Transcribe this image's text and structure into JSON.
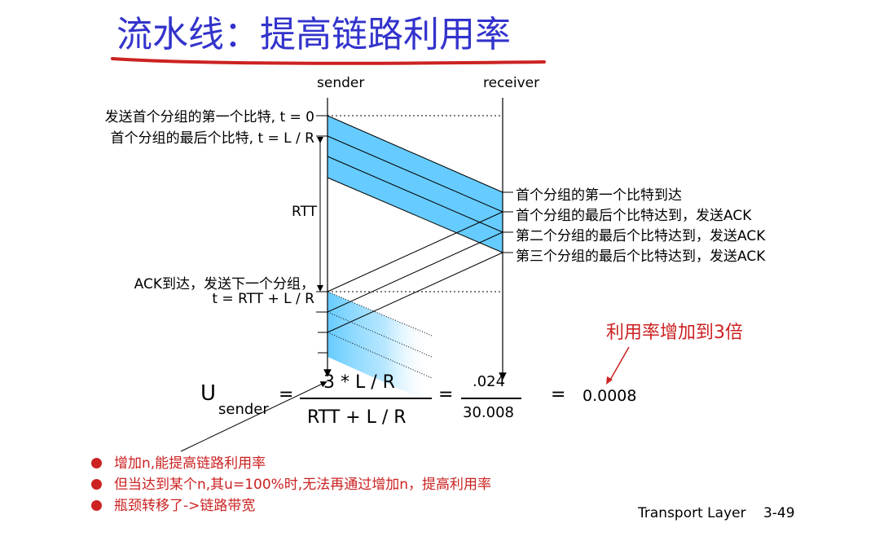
{
  "title": "流水线：提高链路利用率",
  "axis": {
    "sender": "sender",
    "receiver": "receiver"
  },
  "left_labels": {
    "first_bit_sent": "发送首个分组的第一个比特, t = 0",
    "last_bit_sent": "首个分组的最后个比特, t = L / R",
    "rtt": "RTT",
    "ack_arrives_1": "ACK到达，发送下一个分组，",
    "ack_arrives_2": "t = RTT + L / R"
  },
  "right_labels": [
    "首个分组的第一个比特到达",
    "首个分组的最后个比特达到，发送ACK",
    "第二个分组的最后个比特达到，发送ACK",
    "第三个分组的最后个比特达到，发送ACK"
  ],
  "formula": {
    "u": "U",
    "sub": "sender",
    "eq1": "=",
    "numerator": "3 * L / R",
    "denominator": "RTT + L / R",
    "eq2": "=",
    "num2": ".024",
    "den2": "30.008",
    "eq3": "=",
    "result": "0.0008"
  },
  "annotation": "利用率增加到3倍",
  "bullets": [
    "增加n,能提高链路利用率",
    "但当达到某个n,其u=100%时,无法再通过增加n，提高利用率",
    "瓶颈转移了->链路带宽"
  ],
  "footer": {
    "text": "Transport Layer",
    "page": "3-49"
  },
  "colors": {
    "title": "#3333cc",
    "band": "#66ccff",
    "accent_red": "#cc2222"
  }
}
